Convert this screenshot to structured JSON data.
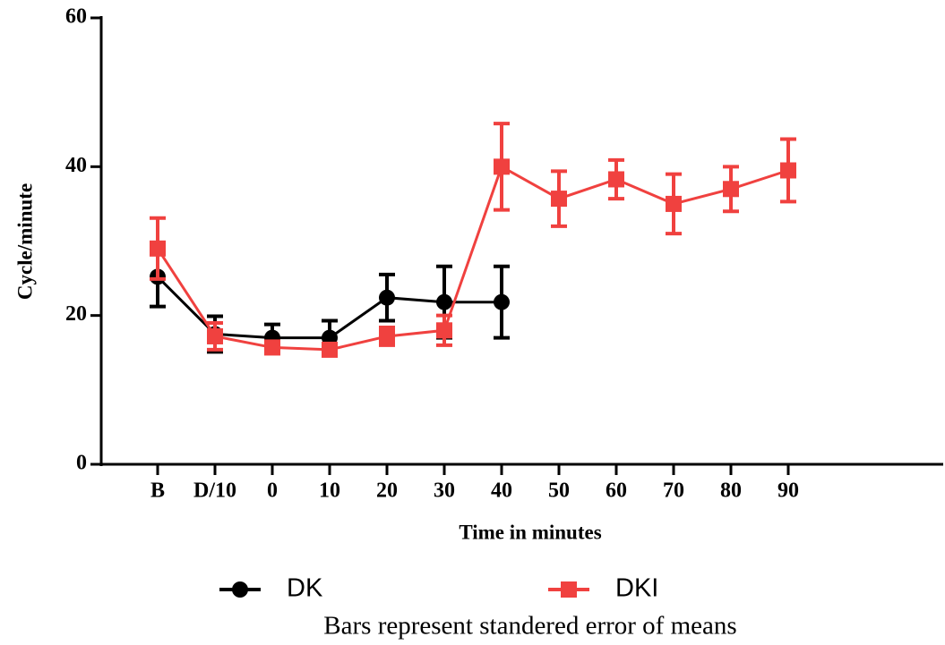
{
  "chart_data": {
    "type": "line",
    "x_label": "Time in minutes",
    "y_label": "Cycle/minute",
    "note": "Bars represent standered error of means",
    "categories": [
      "B",
      "D/10",
      "0",
      "10",
      "20",
      "30",
      "40",
      "50",
      "60",
      "70",
      "80",
      "90"
    ],
    "series": [
      {
        "name": "DK",
        "color": "#000000",
        "marker": "circle",
        "values": [
          25.2,
          17.5,
          17,
          17,
          22.4,
          21.8,
          21.8,
          null,
          null,
          null,
          null,
          null
        ],
        "errors": [
          4,
          2.4,
          1.8,
          2.3,
          3.1,
          4.8,
          4.8,
          null,
          null,
          null,
          null,
          null
        ]
      },
      {
        "name": "DKI",
        "color": "#f0413f",
        "marker": "square",
        "values": [
          29,
          17.2,
          15.7,
          15.4,
          17.2,
          18,
          40,
          35.7,
          38.3,
          35,
          37,
          39.5
        ],
        "errors": [
          4.1,
          1.8,
          0.8,
          0.8,
          1.2,
          2,
          5.8,
          3.7,
          2.6,
          4,
          3,
          4.2
        ]
      }
    ],
    "ylim": [
      0,
      60
    ],
    "yticks": [
      0,
      20,
      40,
      60
    ],
    "grid": false,
    "legend": "bottom"
  }
}
